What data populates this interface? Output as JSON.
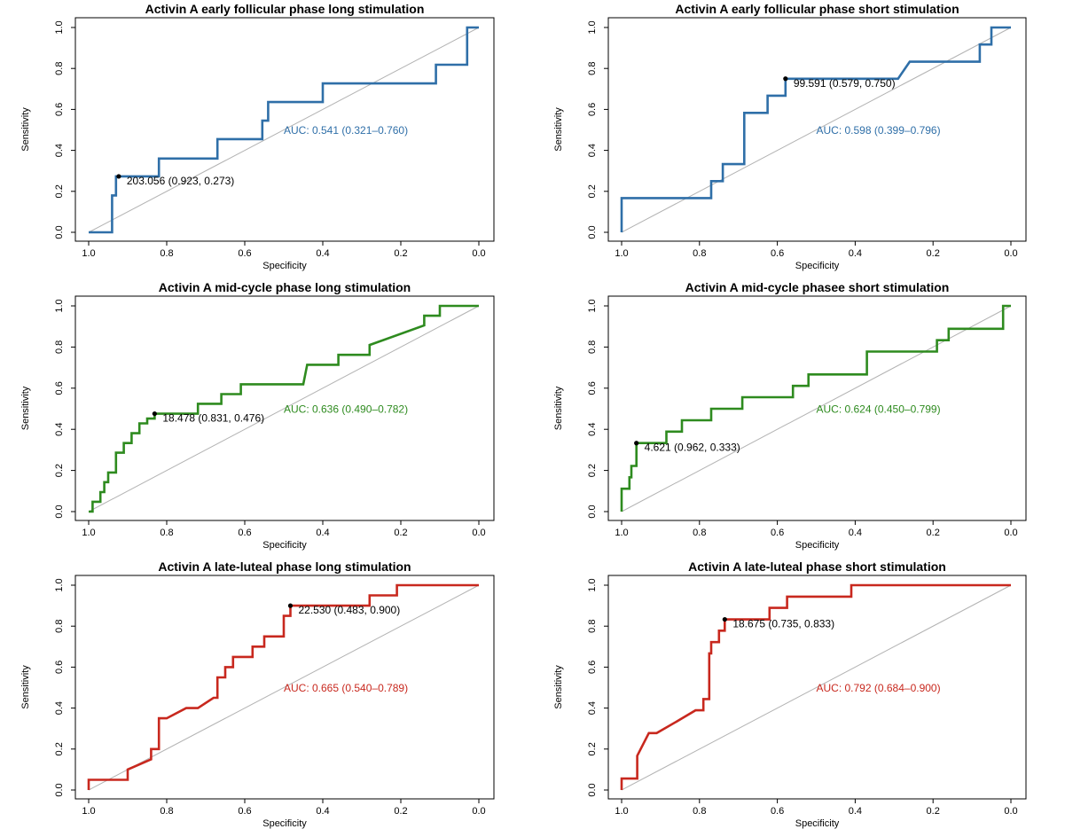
{
  "chart_data": [
    {
      "type": "line",
      "title": "Activin A early follicular phase long stimulation",
      "xlabel": "Specificity",
      "ylabel": "Sensitivity",
      "xlim": [
        1.0,
        0.0
      ],
      "ylim": [
        0.0,
        1.0
      ],
      "x_ticks": [
        "1.0",
        "0.8",
        "0.6",
        "0.4",
        "0.2",
        "0.0"
      ],
      "y_ticks": [
        "0.0",
        "0.2",
        "0.4",
        "0.6",
        "0.8",
        "1.0"
      ],
      "color": "#2f6fa8",
      "x": [
        1.0,
        0.94,
        0.94,
        0.93,
        0.93,
        0.82,
        0.82,
        0.67,
        0.67,
        0.555,
        0.555,
        0.54,
        0.54,
        0.4,
        0.4,
        0.11,
        0.11,
        0.03,
        0.03,
        0.0
      ],
      "y": [
        0.0,
        0.0,
        0.18,
        0.18,
        0.273,
        0.273,
        0.36,
        0.36,
        0.455,
        0.455,
        0.545,
        0.545,
        0.636,
        0.636,
        0.727,
        0.727,
        0.818,
        0.818,
        1.0,
        1.0
      ],
      "threshold_label": "203.056 (0.923, 0.273)",
      "threshold_point": [
        0.923,
        0.273
      ],
      "auc_label": "AUC: 0.541 (0.321–0.760)"
    },
    {
      "type": "line",
      "title": "Activin A early follicular phase short stimulation",
      "xlabel": "Specificity",
      "ylabel": "Sensitivity",
      "xlim": [
        1.0,
        0.0
      ],
      "ylim": [
        0.0,
        1.0
      ],
      "x_ticks": [
        "1.0",
        "0.8",
        "0.6",
        "0.4",
        "0.2",
        "0.0"
      ],
      "y_ticks": [
        "0.0",
        "0.2",
        "0.4",
        "0.6",
        "0.8",
        "1.0"
      ],
      "color": "#2f6fa8",
      "x": [
        1.0,
        1.0,
        0.77,
        0.77,
        0.74,
        0.74,
        0.685,
        0.685,
        0.625,
        0.625,
        0.579,
        0.579,
        0.29,
        0.26,
        0.08,
        0.08,
        0.05,
        0.05,
        0.0
      ],
      "y": [
        0.0,
        0.167,
        0.167,
        0.25,
        0.25,
        0.333,
        0.333,
        0.583,
        0.583,
        0.667,
        0.667,
        0.75,
        0.75,
        0.833,
        0.833,
        0.917,
        0.917,
        1.0,
        1.0
      ],
      "threshold_label": "99.591 (0.579, 0.750)",
      "threshold_point": [
        0.579,
        0.75
      ],
      "auc_label": "AUC: 0.598 (0.399–0.796)"
    },
    {
      "type": "line",
      "title": "Activin A mid-cycle phase long stimulation",
      "xlabel": "Specificity",
      "ylabel": "Sensitivity",
      "xlim": [
        1.0,
        0.0
      ],
      "ylim": [
        0.0,
        1.0
      ],
      "x_ticks": [
        "1.0",
        "0.8",
        "0.6",
        "0.4",
        "0.2",
        "0.0"
      ],
      "y_ticks": [
        "0.0",
        "0.2",
        "0.4",
        "0.6",
        "0.8",
        "1.0"
      ],
      "color": "#2e8b1f",
      "x": [
        1.0,
        0.99,
        0.99,
        0.97,
        0.97,
        0.96,
        0.96,
        0.95,
        0.95,
        0.93,
        0.93,
        0.91,
        0.91,
        0.89,
        0.89,
        0.87,
        0.87,
        0.85,
        0.85,
        0.831,
        0.831,
        0.72,
        0.72,
        0.66,
        0.66,
        0.61,
        0.61,
        0.45,
        0.44,
        0.36,
        0.36,
        0.28,
        0.28,
        0.14,
        0.14,
        0.1,
        0.1,
        0.0
      ],
      "y": [
        0.0,
        0.0,
        0.048,
        0.048,
        0.095,
        0.095,
        0.143,
        0.143,
        0.19,
        0.19,
        0.286,
        0.286,
        0.333,
        0.333,
        0.381,
        0.381,
        0.429,
        0.429,
        0.452,
        0.452,
        0.476,
        0.476,
        0.524,
        0.524,
        0.571,
        0.571,
        0.619,
        0.619,
        0.714,
        0.714,
        0.762,
        0.762,
        0.81,
        0.905,
        0.952,
        0.952,
        1.0,
        1.0
      ],
      "threshold_label": "18.478 (0.831, 0.476)",
      "threshold_point": [
        0.831,
        0.476
      ],
      "auc_label": "AUC: 0.636 (0.490–0.782)"
    },
    {
      "type": "line",
      "title": "Activin A mid-cycle phasee short stimulation",
      "xlabel": "Specificity",
      "ylabel": "Sensitivity",
      "xlim": [
        1.0,
        0.0
      ],
      "ylim": [
        0.0,
        1.0
      ],
      "x_ticks": [
        "1.0",
        "0.8",
        "0.6",
        "0.4",
        "0.2",
        "0.0"
      ],
      "y_ticks": [
        "0.0",
        "0.2",
        "0.4",
        "0.6",
        "0.8",
        "1.0"
      ],
      "color": "#2e8b1f",
      "x": [
        1.0,
        1.0,
        0.98,
        0.98,
        0.975,
        0.975,
        0.962,
        0.962,
        0.885,
        0.885,
        0.845,
        0.845,
        0.77,
        0.77,
        0.69,
        0.69,
        0.56,
        0.56,
        0.52,
        0.52,
        0.37,
        0.37,
        0.19,
        0.19,
        0.16,
        0.16,
        0.02,
        0.02,
        0.0
      ],
      "y": [
        0.0,
        0.111,
        0.111,
        0.167,
        0.167,
        0.222,
        0.222,
        0.333,
        0.333,
        0.389,
        0.389,
        0.444,
        0.444,
        0.5,
        0.5,
        0.556,
        0.556,
        0.611,
        0.611,
        0.667,
        0.667,
        0.778,
        0.778,
        0.833,
        0.833,
        0.889,
        0.889,
        1.0,
        1.0
      ],
      "threshold_label": "4.621 (0.962, 0.333)",
      "threshold_point": [
        0.962,
        0.333
      ],
      "auc_label": "AUC: 0.624 (0.450–0.799)"
    },
    {
      "type": "line",
      "title": "Activin A late-luteal phase long stimulation",
      "xlabel": "Specificity",
      "ylabel": "Sensitivity",
      "xlim": [
        1.0,
        0.0
      ],
      "ylim": [
        0.0,
        1.0
      ],
      "x_ticks": [
        "1.0",
        "0.8",
        "0.6",
        "0.4",
        "0.2",
        "0.0"
      ],
      "y_ticks": [
        "0.0",
        "0.2",
        "0.4",
        "0.6",
        "0.8",
        "1.0"
      ],
      "color": "#c8281e",
      "x": [
        1.0,
        1.0,
        0.9,
        0.9,
        0.84,
        0.84,
        0.82,
        0.82,
        0.8,
        0.75,
        0.72,
        0.68,
        0.67,
        0.67,
        0.65,
        0.65,
        0.63,
        0.63,
        0.58,
        0.58,
        0.55,
        0.55,
        0.5,
        0.5,
        0.483,
        0.483,
        0.28,
        0.28,
        0.21,
        0.21,
        0.0
      ],
      "y": [
        0.0,
        0.05,
        0.05,
        0.1,
        0.15,
        0.2,
        0.2,
        0.35,
        0.35,
        0.4,
        0.4,
        0.45,
        0.45,
        0.55,
        0.55,
        0.6,
        0.6,
        0.65,
        0.65,
        0.7,
        0.7,
        0.75,
        0.75,
        0.85,
        0.85,
        0.9,
        0.9,
        0.95,
        0.95,
        1.0,
        1.0
      ],
      "threshold_label": "22.530 (0.483, 0.900)",
      "threshold_point": [
        0.483,
        0.9
      ],
      "auc_label": "AUC: 0.665 (0.540–0.789)"
    },
    {
      "type": "line",
      "title": "Activin A late-luteal phase short stimulation",
      "xlabel": "Specificity",
      "ylabel": "Sensitivity",
      "xlim": [
        1.0,
        0.0
      ],
      "ylim": [
        0.0,
        1.0
      ],
      "x_ticks": [
        "1.0",
        "0.8",
        "0.6",
        "0.4",
        "0.2",
        "0.0"
      ],
      "y_ticks": [
        "0.0",
        "0.2",
        "0.4",
        "0.6",
        "0.8",
        "1.0"
      ],
      "color": "#c8281e",
      "x": [
        1.0,
        1.0,
        0.96,
        0.96,
        0.93,
        0.91,
        0.86,
        0.81,
        0.79,
        0.79,
        0.775,
        0.775,
        0.77,
        0.77,
        0.75,
        0.75,
        0.735,
        0.735,
        0.62,
        0.62,
        0.575,
        0.575,
        0.41,
        0.41,
        0.0
      ],
      "y": [
        0.0,
        0.056,
        0.056,
        0.167,
        0.278,
        0.278,
        0.333,
        0.389,
        0.389,
        0.444,
        0.444,
        0.667,
        0.667,
        0.722,
        0.722,
        0.778,
        0.778,
        0.833,
        0.833,
        0.889,
        0.889,
        0.944,
        0.944,
        1.0,
        1.0
      ],
      "threshold_label": "18.675 (0.735, 0.833)",
      "threshold_point": [
        0.735,
        0.833
      ],
      "auc_label": "AUC: 0.792 (0.684–0.900)"
    }
  ]
}
